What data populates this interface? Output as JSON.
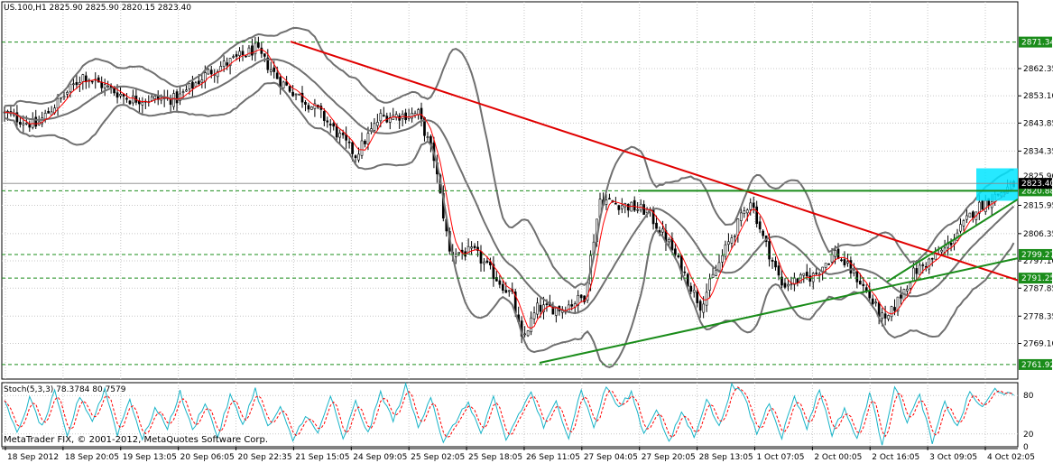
{
  "symbol_header": "US.100,H1  2825.90 2825.90 2820.15 2823.40",
  "stoch_header": "Stoch(5,3,3) 78.3784 80.7579",
  "copyright": "MetaTrader FIX, © 2001-2012, MetaQuotes Software Corp.",
  "colors": {
    "background": "#ffffff",
    "grid": "#c8c8c8",
    "candle": "#000000",
    "bollinger": "#707070",
    "moving_average": "#ff0000",
    "resistance_line": "#e00000",
    "support_line": "#1a8c1a",
    "level_line": "#1a8c1a",
    "stoch_main": "#19b4c8",
    "stoch_signal": "#ff0000",
    "price_highlight": "#00e5ff"
  },
  "chart_data": [
    {
      "type": "candlestick",
      "symbol": "US.100",
      "timeframe": "H1",
      "ylim": [
        2761.92,
        2880.0
      ],
      "y_ticks": [
        "2862.35",
        "2853.10",
        "2843.85",
        "2834.35",
        "2815.95",
        "2806.35",
        "2797.10",
        "2787.85",
        "2778.35",
        "2769.10"
      ],
      "x_ticks": [
        "18 Sep 2012",
        "18 Sep 20:05",
        "19 Sep 13:05",
        "20 Sep 06:05",
        "20 Sep 22:35",
        "21 Sep 15:05",
        "24 Sep 09:05",
        "25 Sep 02:05",
        "25 Sep 18:05",
        "26 Sep 11:05",
        "27 Sep 04:05",
        "27 Sep 20:05",
        "28 Sep 13:05",
        "1 Oct 07:05",
        "2 Oct 00:05",
        "2 Oct 16:05",
        "3 Oct 09:05",
        "4 Oct 02:05"
      ],
      "grid": true,
      "series_name_ohlc": "US.100",
      "last_values": {
        "open": 2825.9,
        "high": 2825.9,
        "low": 2820.15,
        "close": 2823.4
      },
      "anchors": [
        {
          "i": 0,
          "p": 2847
        },
        {
          "i": 10,
          "p": 2843
        },
        {
          "i": 25,
          "p": 2860
        },
        {
          "i": 40,
          "p": 2852
        },
        {
          "i": 55,
          "p": 2852
        },
        {
          "i": 65,
          "p": 2861
        },
        {
          "i": 80,
          "p": 2869
        },
        {
          "i": 88,
          "p": 2858
        },
        {
          "i": 100,
          "p": 2848
        },
        {
          "i": 112,
          "p": 2833
        },
        {
          "i": 120,
          "p": 2846
        },
        {
          "i": 132,
          "p": 2847
        },
        {
          "i": 137,
          "p": 2832
        },
        {
          "i": 142,
          "p": 2800
        },
        {
          "i": 150,
          "p": 2800
        },
        {
          "i": 162,
          "p": 2785
        },
        {
          "i": 165,
          "p": 2770
        },
        {
          "i": 170,
          "p": 2781
        },
        {
          "i": 178,
          "p": 2781
        },
        {
          "i": 185,
          "p": 2785
        },
        {
          "i": 190,
          "p": 2818
        },
        {
          "i": 205,
          "p": 2814
        },
        {
          "i": 212,
          "p": 2803
        },
        {
          "i": 222,
          "p": 2782
        },
        {
          "i": 230,
          "p": 2801
        },
        {
          "i": 238,
          "p": 2818
        },
        {
          "i": 242,
          "p": 2805
        },
        {
          "i": 248,
          "p": 2789
        },
        {
          "i": 258,
          "p": 2792
        },
        {
          "i": 265,
          "p": 2800
        },
        {
          "i": 273,
          "p": 2790
        },
        {
          "i": 281,
          "p": 2776
        },
        {
          "i": 290,
          "p": 2793
        },
        {
          "i": 300,
          "p": 2801
        },
        {
          "i": 310,
          "p": 2815
        },
        {
          "i": 322,
          "p": 2823
        }
      ],
      "candle_count": 323,
      "indicators": [
        "Bollinger Bands",
        "Moving Average"
      ],
      "horizontal_levels": [
        {
          "label": "2871.34",
          "value": 2871.34
        },
        {
          "label": "2820.88",
          "value": 2820.88
        },
        {
          "label": "2799.27",
          "value": 2799.27
        },
        {
          "label": "2791.25",
          "value": 2791.25
        },
        {
          "label": "2761.92",
          "value": 2761.92
        }
      ],
      "current_price_label": "2823.40",
      "price_labels": [
        "2825.90"
      ],
      "trendlines": [
        {
          "name": "resistance",
          "color": "red",
          "from": {
            "t": "21 Sep 15:05",
            "price": 2871.5
          },
          "to": {
            "t": "4 Oct 02:05",
            "price": 2790.5
          }
        },
        {
          "name": "support",
          "color": "green",
          "from": {
            "t": "26 Sep 11:05",
            "price": 2762.5
          },
          "to": {
            "t": "4 Oct 02:05",
            "price": 2798.0
          }
        },
        {
          "name": "horizontal top",
          "color": "green",
          "from": {
            "t": "27 Sep 04:05",
            "price": 2820.88
          },
          "to": {
            "t": "4 Oct 02:05",
            "price": 2820.88
          }
        },
        {
          "name": "channel",
          "color": "green",
          "from": {
            "t": "3 Oct 04:05",
            "price": 2790
          },
          "to": {
            "t": "4 Oct 02:05",
            "price": 2818
          }
        }
      ]
    },
    {
      "type": "line",
      "title": "Stoch(5,3,3) 78.3784 80.7579",
      "ylim": [
        0,
        100
      ],
      "y_ticks": [
        "80",
        "20",
        "0"
      ],
      "series": [
        {
          "name": "Main",
          "last": 78.3784
        },
        {
          "name": "Signal",
          "last": 80.7579
        }
      ],
      "anchors": [
        {
          "i": 0,
          "v": 70
        },
        {
          "i": 4,
          "v": 20
        },
        {
          "i": 8,
          "v": 75
        },
        {
          "i": 12,
          "v": 30
        },
        {
          "i": 16,
          "v": 85
        },
        {
          "i": 20,
          "v": 15
        },
        {
          "i": 24,
          "v": 80
        },
        {
          "i": 28,
          "v": 40
        },
        {
          "i": 32,
          "v": 90
        },
        {
          "i": 36,
          "v": 20
        },
        {
          "i": 40,
          "v": 75
        },
        {
          "i": 44,
          "v": 10
        },
        {
          "i": 48,
          "v": 60
        },
        {
          "i": 52,
          "v": 30
        },
        {
          "i": 56,
          "v": 85
        },
        {
          "i": 60,
          "v": 25
        },
        {
          "i": 64,
          "v": 70
        },
        {
          "i": 68,
          "v": 15
        },
        {
          "i": 72,
          "v": 80
        },
        {
          "i": 76,
          "v": 35
        },
        {
          "i": 80,
          "v": 90
        },
        {
          "i": 84,
          "v": 30
        },
        {
          "i": 88,
          "v": 60
        },
        {
          "i": 92,
          "v": 10
        },
        {
          "i": 96,
          "v": 50
        },
        {
          "i": 100,
          "v": 20
        },
        {
          "i": 104,
          "v": 80
        },
        {
          "i": 108,
          "v": 10
        },
        {
          "i": 112,
          "v": 70
        },
        {
          "i": 116,
          "v": 20
        },
        {
          "i": 120,
          "v": 85
        },
        {
          "i": 124,
          "v": 40
        },
        {
          "i": 128,
          "v": 95
        },
        {
          "i": 132,
          "v": 30
        },
        {
          "i": 136,
          "v": 80
        },
        {
          "i": 140,
          "v": 5
        },
        {
          "i": 144,
          "v": 40
        },
        {
          "i": 148,
          "v": 70
        },
        {
          "i": 152,
          "v": 20
        },
        {
          "i": 156,
          "v": 75
        },
        {
          "i": 160,
          "v": 10
        },
        {
          "i": 164,
          "v": 50
        },
        {
          "i": 168,
          "v": 85
        },
        {
          "i": 172,
          "v": 30
        },
        {
          "i": 176,
          "v": 70
        },
        {
          "i": 180,
          "v": 15
        },
        {
          "i": 184,
          "v": 90
        },
        {
          "i": 188,
          "v": 30
        },
        {
          "i": 192,
          "v": 95
        },
        {
          "i": 196,
          "v": 60
        },
        {
          "i": 200,
          "v": 85
        },
        {
          "i": 204,
          "v": 20
        },
        {
          "i": 208,
          "v": 60
        },
        {
          "i": 212,
          "v": 5
        },
        {
          "i": 216,
          "v": 55
        },
        {
          "i": 220,
          "v": 15
        },
        {
          "i": 224,
          "v": 75
        },
        {
          "i": 228,
          "v": 30
        },
        {
          "i": 232,
          "v": 95
        },
        {
          "i": 236,
          "v": 80
        },
        {
          "i": 240,
          "v": 20
        },
        {
          "i": 244,
          "v": 70
        },
        {
          "i": 248,
          "v": 15
        },
        {
          "i": 252,
          "v": 80
        },
        {
          "i": 256,
          "v": 30
        },
        {
          "i": 260,
          "v": 90
        },
        {
          "i": 264,
          "v": 20
        },
        {
          "i": 268,
          "v": 60
        },
        {
          "i": 272,
          "v": 10
        },
        {
          "i": 276,
          "v": 85
        },
        {
          "i": 280,
          "v": 5
        },
        {
          "i": 284,
          "v": 95
        },
        {
          "i": 288,
          "v": 40
        },
        {
          "i": 292,
          "v": 80
        },
        {
          "i": 296,
          "v": 5
        },
        {
          "i": 300,
          "v": 70
        },
        {
          "i": 304,
          "v": 30
        },
        {
          "i": 308,
          "v": 85
        },
        {
          "i": 312,
          "v": 60
        },
        {
          "i": 316,
          "v": 90
        },
        {
          "i": 322,
          "v": 78.38
        }
      ]
    }
  ]
}
